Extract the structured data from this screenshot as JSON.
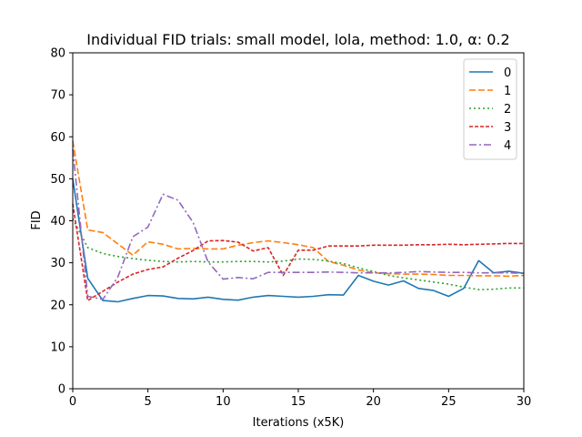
{
  "chart_data": {
    "type": "line",
    "title": "Individual FID trials: small model, lola, method: 1.0, α: 0.2",
    "xlabel": "Iterations (x5K)",
    "ylabel": "FID",
    "xlim": [
      0,
      30
    ],
    "ylim": [
      0,
      80
    ],
    "xticks": [
      0,
      5,
      10,
      15,
      20,
      25,
      30
    ],
    "yticks": [
      0,
      10,
      20,
      30,
      40,
      50,
      60,
      70,
      80
    ],
    "grid": false,
    "legend_position": "top-right",
    "series": [
      {
        "name": "0",
        "color": "#1f77b4",
        "dash": "solid",
        "x": [
          0,
          1,
          2,
          3,
          4,
          5,
          6,
          7,
          8,
          9,
          10,
          11,
          12,
          13,
          14,
          15,
          16,
          17,
          18,
          19,
          20,
          21,
          22,
          23,
          24,
          25,
          26,
          27,
          28,
          29,
          30
        ],
        "y": [
          50.0,
          26.3,
          21.0,
          20.7,
          21.5,
          22.2,
          22.1,
          21.5,
          21.4,
          21.8,
          21.3,
          21.1,
          21.8,
          22.2,
          22.0,
          21.8,
          22.0,
          22.4,
          22.3,
          27.0,
          25.6,
          24.7,
          25.7,
          23.9,
          23.4,
          22.0,
          23.9,
          30.5,
          27.6,
          28.0,
          27.5
        ]
      },
      {
        "name": "1",
        "color": "#ff7f0e",
        "dash": "dashed",
        "x": [
          0,
          1,
          2,
          3,
          4,
          5,
          6,
          7,
          8,
          9,
          10,
          11,
          12,
          13,
          14,
          15,
          16,
          17,
          18,
          19,
          20,
          21,
          22,
          23,
          24,
          25,
          26,
          27,
          28,
          29,
          30
        ],
        "y": [
          59.0,
          37.8,
          37.2,
          34.5,
          31.8,
          35.0,
          34.4,
          33.3,
          33.4,
          33.3,
          33.3,
          34.2,
          34.8,
          35.2,
          34.8,
          34.3,
          33.6,
          30.3,
          29.4,
          28.3,
          27.6,
          27.4,
          27.3,
          27.3,
          27.2,
          27.0,
          27.0,
          26.9,
          26.9,
          26.8,
          27.0
        ]
      },
      {
        "name": "2",
        "color": "#2ca02c",
        "dash": "dotted",
        "x": [
          0,
          1,
          2,
          3,
          4,
          5,
          6,
          7,
          8,
          9,
          10,
          11,
          12,
          13,
          14,
          15,
          16,
          17,
          18,
          19,
          20,
          21,
          22,
          23,
          24,
          25,
          26,
          27,
          28,
          29,
          30
        ],
        "y": [
          40.5,
          33.6,
          32.2,
          31.5,
          31.0,
          30.6,
          30.3,
          30.2,
          30.3,
          30.2,
          30.2,
          30.3,
          30.3,
          30.2,
          30.4,
          30.9,
          30.8,
          30.4,
          29.8,
          28.8,
          27.9,
          27.0,
          26.4,
          25.9,
          25.4,
          24.9,
          24.2,
          23.6,
          23.7,
          24.0,
          24.0
        ]
      },
      {
        "name": "3",
        "color": "#d62728",
        "dash": "densely-dashed",
        "x": [
          0,
          1,
          2,
          3,
          4,
          5,
          6,
          7,
          8,
          9,
          10,
          11,
          12,
          13,
          14,
          15,
          16,
          17,
          18,
          19,
          20,
          21,
          22,
          23,
          24,
          25,
          26,
          27,
          28,
          29,
          30
        ],
        "y": [
          44.0,
          21.0,
          23.2,
          25.4,
          27.3,
          28.4,
          29.0,
          31.1,
          32.9,
          35.2,
          35.3,
          34.9,
          32.8,
          33.6,
          27.0,
          33.0,
          33.0,
          34.0,
          34.0,
          34.0,
          34.2,
          34.2,
          34.2,
          34.3,
          34.3,
          34.4,
          34.3,
          34.4,
          34.5,
          34.6,
          34.6
        ]
      },
      {
        "name": "4",
        "color": "#9467bd",
        "dash": "dashdot",
        "x": [
          0,
          1,
          2,
          3,
          4,
          5,
          6,
          7,
          8,
          9,
          10,
          11,
          12,
          13,
          14,
          15,
          16,
          17,
          18,
          19,
          20,
          21,
          22,
          23,
          24,
          25,
          26,
          27,
          28,
          29,
          30
        ],
        "y": [
          57.0,
          22.0,
          21.3,
          26.6,
          36.2,
          38.5,
          46.3,
          44.9,
          39.6,
          30.2,
          26.1,
          26.5,
          26.2,
          27.7,
          27.7,
          27.7,
          27.7,
          27.8,
          27.7,
          27.6,
          27.6,
          27.6,
          27.7,
          27.9,
          27.8,
          27.7,
          27.7,
          27.6,
          27.6,
          27.6,
          27.5
        ]
      }
    ]
  }
}
